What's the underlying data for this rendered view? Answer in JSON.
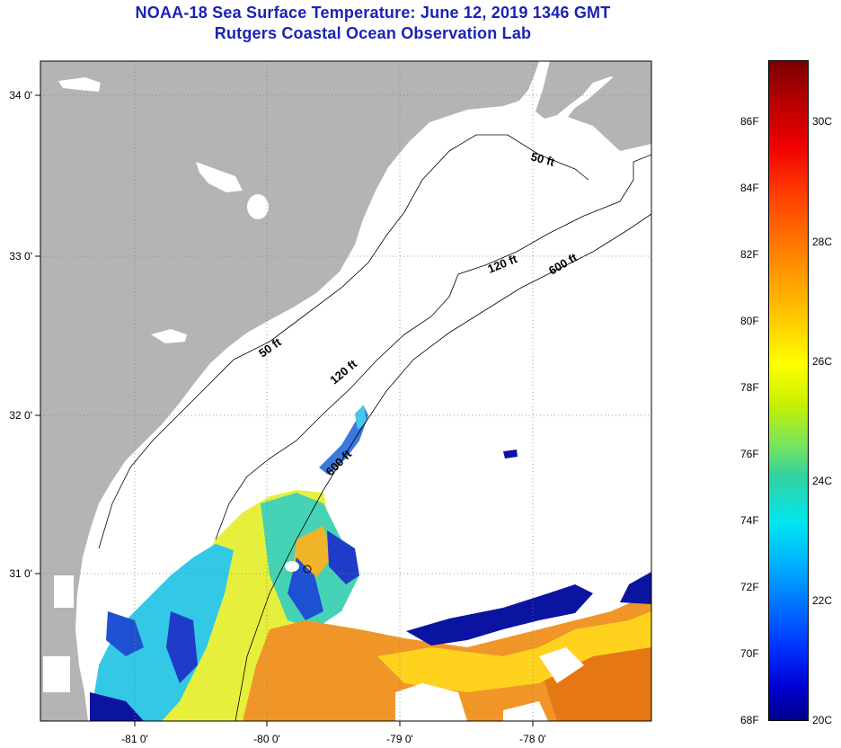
{
  "title_line1": "NOAA-18 Sea Surface Temperature:  June 12, 2019 1346 GMT",
  "title_line2": "Rutgers Coastal Ocean Observation Lab",
  "map": {
    "lon_labels": [
      "-81 0'",
      "-80 0'",
      "-79 0'",
      "-78 0'"
    ],
    "lat_labels": [
      "34 0'",
      "33 0'",
      "32 0'",
      "31 0'"
    ],
    "depth_labels": {
      "d50_north": "50 ft",
      "d50_south": "50 ft",
      "d120_north": "120 ft",
      "d120_south": "120 ft",
      "d600_north": "600 ft",
      "d600_south": "600 ft"
    },
    "colors": {
      "land": "#b4b4b4",
      "ocean_nodata": "#ffffff",
      "grid": "#808080"
    }
  },
  "colorbar": {
    "fahrenheit_labels": [
      "86F",
      "84F",
      "82F",
      "80F",
      "78F",
      "76F",
      "74F",
      "72F",
      "70F",
      "68F"
    ],
    "celsius_labels": [
      "30C",
      "28C",
      "26C",
      "24C",
      "22C",
      "20C"
    ]
  }
}
